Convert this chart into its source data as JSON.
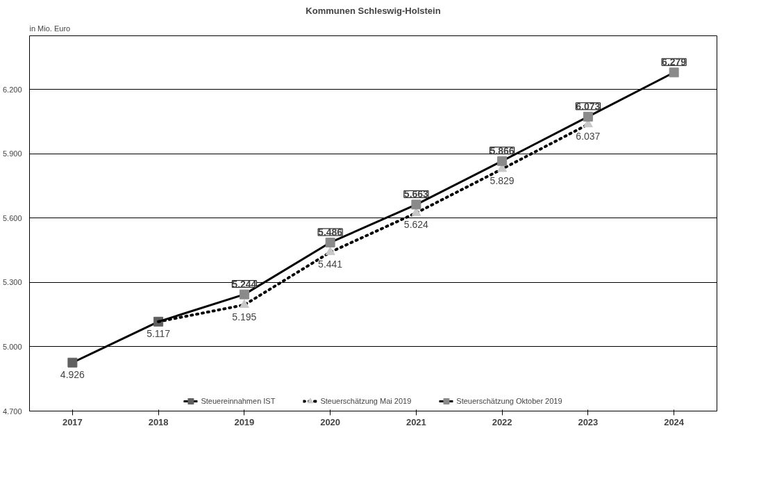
{
  "chart_data": {
    "type": "line",
    "title": "Kommunen Schleswig-Holstein",
    "ylabel": "in Mio. Euro",
    "categories": [
      "2017",
      "2018",
      "2019",
      "2020",
      "2021",
      "2022",
      "2023",
      "2024"
    ],
    "series": [
      {
        "name": "Steuereinnahmen IST",
        "color": "#000000",
        "marker": "square",
        "line_style": "solid",
        "values": [
          4926,
          5117,
          null,
          null,
          null,
          null,
          null,
          null
        ],
        "value_labels": [
          "4.926",
          "5.117",
          null,
          null,
          null,
          null,
          null,
          null
        ]
      },
      {
        "name": "Steuerschätzung Mai 2019",
        "color": "#000000",
        "marker": "triangle",
        "line_style": "dotted",
        "values": [
          null,
          5117,
          5195,
          5441,
          5624,
          5829,
          6037,
          null
        ],
        "value_labels": [
          null,
          null,
          "5.195",
          "5.441",
          "5.624",
          "5.829",
          "6.037",
          null
        ]
      },
      {
        "name": "Steuerschätzung Oktober 2019",
        "color": "#000000",
        "marker": "square",
        "line_style": "solid",
        "values": [
          null,
          5117,
          5244,
          5486,
          5663,
          5866,
          6073,
          6279
        ],
        "value_labels": [
          null,
          null,
          "5.244",
          "5.486",
          "5.663",
          "5.866",
          "6.073",
          "6.279"
        ]
      }
    ],
    "ylim": [
      4700,
      6450
    ],
    "yticks": [
      {
        "value": 4700,
        "label": "4.700"
      },
      {
        "value": 5000,
        "label": "5.000"
      },
      {
        "value": 5300,
        "label": "5.300"
      },
      {
        "value": 5600,
        "label": "5.600"
      },
      {
        "value": 5900,
        "label": "5.900"
      },
      {
        "value": 6200,
        "label": "6.200"
      }
    ],
    "grid": "y",
    "legend": "bottom"
  }
}
